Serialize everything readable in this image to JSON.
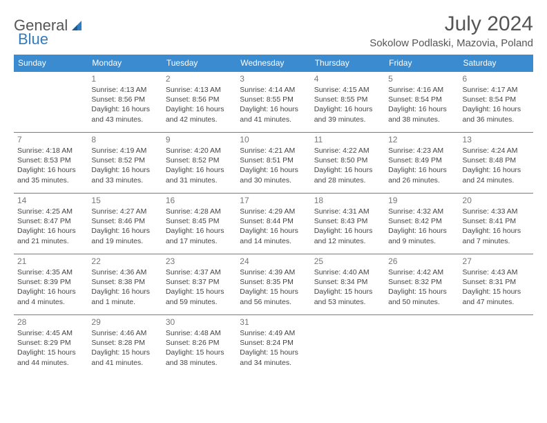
{
  "brand": {
    "part1": "General",
    "part2": "Blue"
  },
  "title": "July 2024",
  "location": "Sokolow Podlaski, Mazovia, Poland",
  "colors": {
    "header_bg": "#3b8bd0",
    "header_text": "#ffffff",
    "border": "#3b8bd0",
    "brand_blue": "#2f7cc0",
    "text": "#444444",
    "daynum": "#777777"
  },
  "weekdays": [
    "Sunday",
    "Monday",
    "Tuesday",
    "Wednesday",
    "Thursday",
    "Friday",
    "Saturday"
  ],
  "weeks": [
    [
      null,
      {
        "n": "1",
        "sunrise": "Sunrise: 4:13 AM",
        "sunset": "Sunset: 8:56 PM",
        "daylight": "Daylight: 16 hours and 43 minutes."
      },
      {
        "n": "2",
        "sunrise": "Sunrise: 4:13 AM",
        "sunset": "Sunset: 8:56 PM",
        "daylight": "Daylight: 16 hours and 42 minutes."
      },
      {
        "n": "3",
        "sunrise": "Sunrise: 4:14 AM",
        "sunset": "Sunset: 8:55 PM",
        "daylight": "Daylight: 16 hours and 41 minutes."
      },
      {
        "n": "4",
        "sunrise": "Sunrise: 4:15 AM",
        "sunset": "Sunset: 8:55 PM",
        "daylight": "Daylight: 16 hours and 39 minutes."
      },
      {
        "n": "5",
        "sunrise": "Sunrise: 4:16 AM",
        "sunset": "Sunset: 8:54 PM",
        "daylight": "Daylight: 16 hours and 38 minutes."
      },
      {
        "n": "6",
        "sunrise": "Sunrise: 4:17 AM",
        "sunset": "Sunset: 8:54 PM",
        "daylight": "Daylight: 16 hours and 36 minutes."
      }
    ],
    [
      {
        "n": "7",
        "sunrise": "Sunrise: 4:18 AM",
        "sunset": "Sunset: 8:53 PM",
        "daylight": "Daylight: 16 hours and 35 minutes."
      },
      {
        "n": "8",
        "sunrise": "Sunrise: 4:19 AM",
        "sunset": "Sunset: 8:52 PM",
        "daylight": "Daylight: 16 hours and 33 minutes."
      },
      {
        "n": "9",
        "sunrise": "Sunrise: 4:20 AM",
        "sunset": "Sunset: 8:52 PM",
        "daylight": "Daylight: 16 hours and 31 minutes."
      },
      {
        "n": "10",
        "sunrise": "Sunrise: 4:21 AM",
        "sunset": "Sunset: 8:51 PM",
        "daylight": "Daylight: 16 hours and 30 minutes."
      },
      {
        "n": "11",
        "sunrise": "Sunrise: 4:22 AM",
        "sunset": "Sunset: 8:50 PM",
        "daylight": "Daylight: 16 hours and 28 minutes."
      },
      {
        "n": "12",
        "sunrise": "Sunrise: 4:23 AM",
        "sunset": "Sunset: 8:49 PM",
        "daylight": "Daylight: 16 hours and 26 minutes."
      },
      {
        "n": "13",
        "sunrise": "Sunrise: 4:24 AM",
        "sunset": "Sunset: 8:48 PM",
        "daylight": "Daylight: 16 hours and 24 minutes."
      }
    ],
    [
      {
        "n": "14",
        "sunrise": "Sunrise: 4:25 AM",
        "sunset": "Sunset: 8:47 PM",
        "daylight": "Daylight: 16 hours and 21 minutes."
      },
      {
        "n": "15",
        "sunrise": "Sunrise: 4:27 AM",
        "sunset": "Sunset: 8:46 PM",
        "daylight": "Daylight: 16 hours and 19 minutes."
      },
      {
        "n": "16",
        "sunrise": "Sunrise: 4:28 AM",
        "sunset": "Sunset: 8:45 PM",
        "daylight": "Daylight: 16 hours and 17 minutes."
      },
      {
        "n": "17",
        "sunrise": "Sunrise: 4:29 AM",
        "sunset": "Sunset: 8:44 PM",
        "daylight": "Daylight: 16 hours and 14 minutes."
      },
      {
        "n": "18",
        "sunrise": "Sunrise: 4:31 AM",
        "sunset": "Sunset: 8:43 PM",
        "daylight": "Daylight: 16 hours and 12 minutes."
      },
      {
        "n": "19",
        "sunrise": "Sunrise: 4:32 AM",
        "sunset": "Sunset: 8:42 PM",
        "daylight": "Daylight: 16 hours and 9 minutes."
      },
      {
        "n": "20",
        "sunrise": "Sunrise: 4:33 AM",
        "sunset": "Sunset: 8:41 PM",
        "daylight": "Daylight: 16 hours and 7 minutes."
      }
    ],
    [
      {
        "n": "21",
        "sunrise": "Sunrise: 4:35 AM",
        "sunset": "Sunset: 8:39 PM",
        "daylight": "Daylight: 16 hours and 4 minutes."
      },
      {
        "n": "22",
        "sunrise": "Sunrise: 4:36 AM",
        "sunset": "Sunset: 8:38 PM",
        "daylight": "Daylight: 16 hours and 1 minute."
      },
      {
        "n": "23",
        "sunrise": "Sunrise: 4:37 AM",
        "sunset": "Sunset: 8:37 PM",
        "daylight": "Daylight: 15 hours and 59 minutes."
      },
      {
        "n": "24",
        "sunrise": "Sunrise: 4:39 AM",
        "sunset": "Sunset: 8:35 PM",
        "daylight": "Daylight: 15 hours and 56 minutes."
      },
      {
        "n": "25",
        "sunrise": "Sunrise: 4:40 AM",
        "sunset": "Sunset: 8:34 PM",
        "daylight": "Daylight: 15 hours and 53 minutes."
      },
      {
        "n": "26",
        "sunrise": "Sunrise: 4:42 AM",
        "sunset": "Sunset: 8:32 PM",
        "daylight": "Daylight: 15 hours and 50 minutes."
      },
      {
        "n": "27",
        "sunrise": "Sunrise: 4:43 AM",
        "sunset": "Sunset: 8:31 PM",
        "daylight": "Daylight: 15 hours and 47 minutes."
      }
    ],
    [
      {
        "n": "28",
        "sunrise": "Sunrise: 4:45 AM",
        "sunset": "Sunset: 8:29 PM",
        "daylight": "Daylight: 15 hours and 44 minutes."
      },
      {
        "n": "29",
        "sunrise": "Sunrise: 4:46 AM",
        "sunset": "Sunset: 8:28 PM",
        "daylight": "Daylight: 15 hours and 41 minutes."
      },
      {
        "n": "30",
        "sunrise": "Sunrise: 4:48 AM",
        "sunset": "Sunset: 8:26 PM",
        "daylight": "Daylight: 15 hours and 38 minutes."
      },
      {
        "n": "31",
        "sunrise": "Sunrise: 4:49 AM",
        "sunset": "Sunset: 8:24 PM",
        "daylight": "Daylight: 15 hours and 34 minutes."
      },
      null,
      null,
      null
    ]
  ]
}
